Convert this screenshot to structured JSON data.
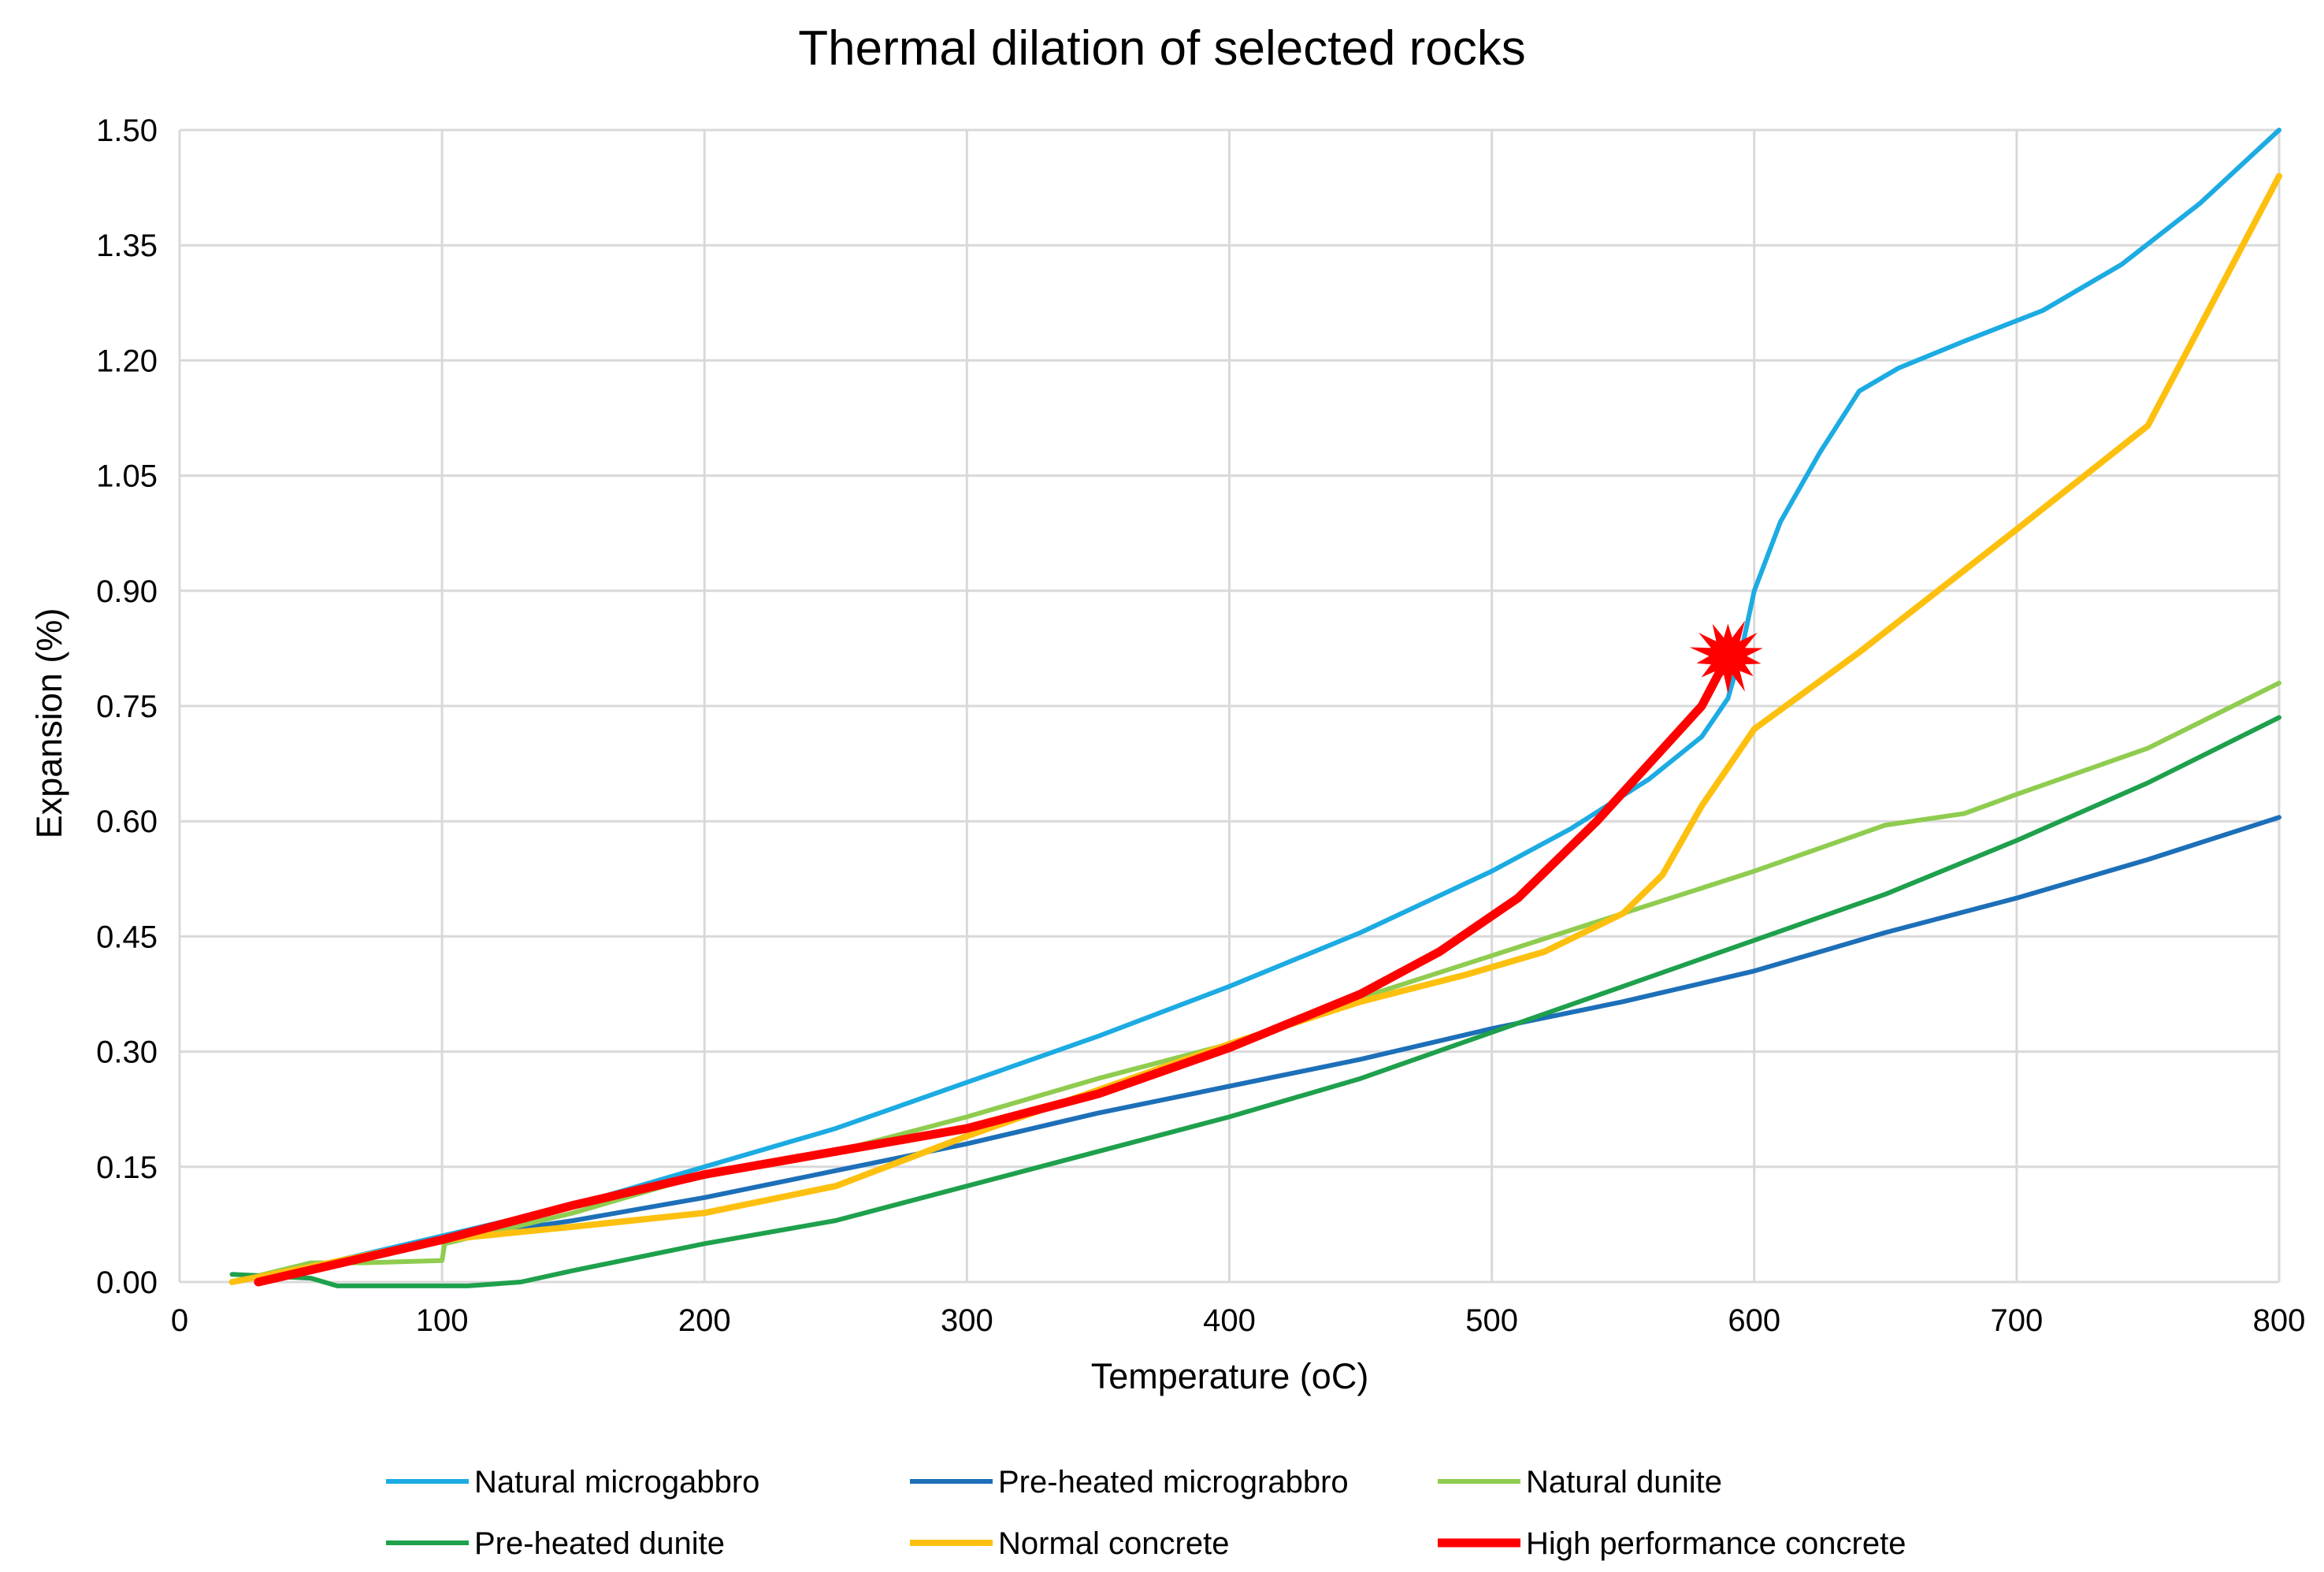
{
  "chart_data": {
    "type": "line",
    "title": "Thermal dilation of selected rocks",
    "xlabel": "Temperature (oC)",
    "ylabel": "Expansion (%)",
    "xlim": [
      0,
      800
    ],
    "ylim": [
      0,
      1.5
    ],
    "xticks": [
      0,
      100,
      200,
      300,
      400,
      500,
      600,
      700,
      800
    ],
    "yticks": [
      "0.00",
      "0.15",
      "0.30",
      "0.45",
      "0.60",
      "0.75",
      "0.90",
      "1.05",
      "1.20",
      "1.35",
      "1.50"
    ],
    "grid": true,
    "legend_position": "bottom",
    "series": [
      {
        "name": "Natural microgabbro",
        "color": "#1cabe2",
        "width": 6,
        "points": [
          [
            20,
            0
          ],
          [
            50,
            0.02
          ],
          [
            100,
            0.06
          ],
          [
            150,
            0.1
          ],
          [
            200,
            0.15
          ],
          [
            250,
            0.2
          ],
          [
            300,
            0.26
          ],
          [
            350,
            0.32
          ],
          [
            400,
            0.385
          ],
          [
            450,
            0.455
          ],
          [
            500,
            0.535
          ],
          [
            530,
            0.59
          ],
          [
            560,
            0.655
          ],
          [
            580,
            0.71
          ],
          [
            590,
            0.76
          ],
          [
            595,
            0.82
          ],
          [
            600,
            0.9
          ],
          [
            610,
            0.99
          ],
          [
            625,
            1.08
          ],
          [
            640,
            1.16
          ],
          [
            655,
            1.19
          ],
          [
            680,
            1.225
          ],
          [
            710,
            1.265
          ],
          [
            740,
            1.325
          ],
          [
            770,
            1.405
          ],
          [
            800,
            1.5
          ]
        ]
      },
      {
        "name": "Pre-heated micrograbbro",
        "color": "#1d6fb8",
        "width": 6,
        "points": [
          [
            20,
            0
          ],
          [
            50,
            0.02
          ],
          [
            100,
            0.055
          ],
          [
            150,
            0.08
          ],
          [
            200,
            0.11
          ],
          [
            250,
            0.145
          ],
          [
            300,
            0.18
          ],
          [
            350,
            0.22
          ],
          [
            400,
            0.255
          ],
          [
            450,
            0.29
          ],
          [
            500,
            0.33
          ],
          [
            550,
            0.365
          ],
          [
            600,
            0.405
          ],
          [
            650,
            0.455
          ],
          [
            700,
            0.5
          ],
          [
            750,
            0.55
          ],
          [
            800,
            0.605
          ]
        ]
      },
      {
        "name": "Natural dunite",
        "color": "#8fcc4f",
        "width": 6,
        "points": [
          [
            20,
            0
          ],
          [
            50,
            0.025
          ],
          [
            70,
            0.025
          ],
          [
            100,
            0.028
          ],
          [
            101,
            0.05
          ],
          [
            150,
            0.09
          ],
          [
            200,
            0.14
          ],
          [
            250,
            0.17
          ],
          [
            300,
            0.215
          ],
          [
            350,
            0.265
          ],
          [
            400,
            0.31
          ],
          [
            450,
            0.37
          ],
          [
            500,
            0.425
          ],
          [
            550,
            0.48
          ],
          [
            600,
            0.535
          ],
          [
            650,
            0.595
          ],
          [
            680,
            0.61
          ],
          [
            700,
            0.635
          ],
          [
            750,
            0.695
          ],
          [
            800,
            0.78
          ]
        ]
      },
      {
        "name": "Pre-heated dunite",
        "color": "#1ea04c",
        "width": 6,
        "points": [
          [
            20,
            0.01
          ],
          [
            50,
            0.005
          ],
          [
            60,
            -0.005
          ],
          [
            110,
            -0.005
          ],
          [
            130,
            0
          ],
          [
            150,
            0.015
          ],
          [
            200,
            0.05
          ],
          [
            250,
            0.08
          ],
          [
            300,
            0.125
          ],
          [
            350,
            0.17
          ],
          [
            400,
            0.215
          ],
          [
            450,
            0.265
          ],
          [
            500,
            0.325
          ],
          [
            550,
            0.385
          ],
          [
            600,
            0.445
          ],
          [
            650,
            0.505
          ],
          [
            700,
            0.575
          ],
          [
            750,
            0.65
          ],
          [
            800,
            0.735
          ]
        ]
      },
      {
        "name": "Normal concrete",
        "color": "#fdc00f",
        "width": 8,
        "points": [
          [
            20,
            0
          ],
          [
            50,
            0.02
          ],
          [
            100,
            0.055
          ],
          [
            150,
            0.072
          ],
          [
            200,
            0.09
          ],
          [
            250,
            0.125
          ],
          [
            300,
            0.19
          ],
          [
            350,
            0.25
          ],
          [
            400,
            0.31
          ],
          [
            450,
            0.365
          ],
          [
            490,
            0.4
          ],
          [
            520,
            0.43
          ],
          [
            550,
            0.48
          ],
          [
            565,
            0.53
          ],
          [
            580,
            0.62
          ],
          [
            600,
            0.72
          ],
          [
            640,
            0.82
          ],
          [
            700,
            0.98
          ],
          [
            750,
            1.115
          ],
          [
            800,
            1.44
          ]
        ]
      },
      {
        "name": "High performance concrete",
        "color": "#ff0000",
        "width": 11,
        "points": [
          [
            30,
            0
          ],
          [
            100,
            0.055
          ],
          [
            150,
            0.1
          ],
          [
            200,
            0.14
          ],
          [
            250,
            0.17
          ],
          [
            300,
            0.2
          ],
          [
            350,
            0.245
          ],
          [
            400,
            0.305
          ],
          [
            450,
            0.375
          ],
          [
            480,
            0.43
          ],
          [
            510,
            0.5
          ],
          [
            540,
            0.6
          ],
          [
            560,
            0.675
          ],
          [
            580,
            0.75
          ],
          [
            590,
            0.815
          ]
        ]
      }
    ],
    "annotations": [
      {
        "type": "burst",
        "x": 590,
        "y": 0.815,
        "color": "#ff0000"
      }
    ]
  }
}
